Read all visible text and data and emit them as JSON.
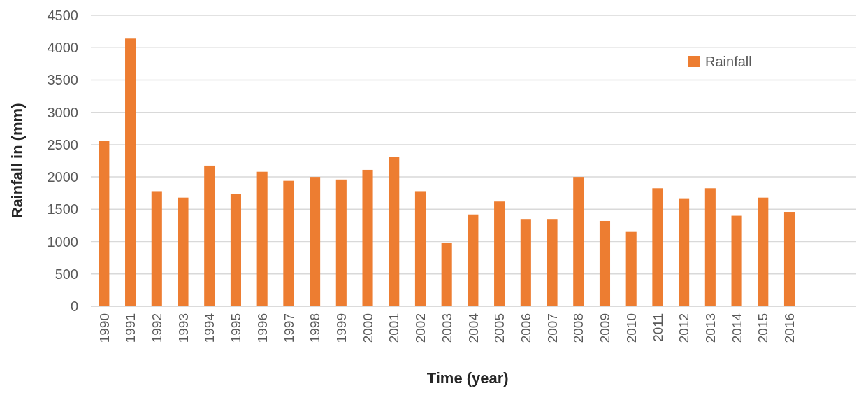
{
  "chart_data": {
    "type": "bar",
    "xlabel": "Time (year)",
    "ylabel": "Rainfall in (mm)",
    "categories": [
      "1990",
      "1991",
      "1992",
      "1993",
      "1994",
      "1995",
      "1996",
      "1997",
      "1998",
      "1999",
      "2000",
      "2001",
      "2002",
      "2003",
      "2004",
      "2005",
      "2006",
      "2007",
      "2008",
      "2009",
      "2010",
      "2011",
      "2012",
      "2013",
      "2014",
      "2015",
      "2016"
    ],
    "series": [
      {
        "name": "Rainfall",
        "color": "#ed7d31",
        "values": [
          2560,
          4140,
          1780,
          1680,
          2175,
          1740,
          2080,
          1940,
          2000,
          1960,
          2110,
          2310,
          1780,
          980,
          1420,
          1620,
          1350,
          1350,
          2000,
          1320,
          1150,
          1825,
          1670,
          1825,
          1400,
          1680,
          1460
        ]
      }
    ],
    "ylim": [
      0,
      4500
    ],
    "yticks": [
      0,
      500,
      1000,
      1500,
      2000,
      2500,
      3000,
      3500,
      4000,
      4500
    ],
    "grid": "y",
    "legend": "top right"
  }
}
